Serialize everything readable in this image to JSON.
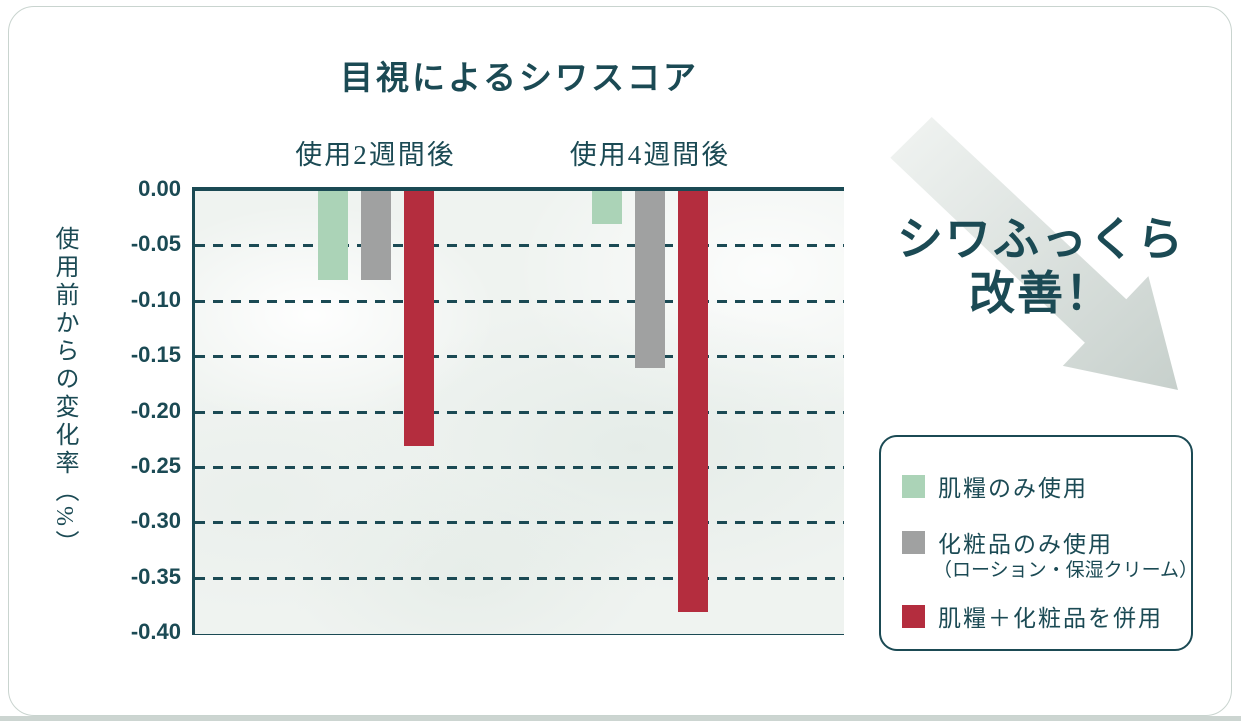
{
  "title": "目視によるシワスコア",
  "callout": {
    "line1": "シワふっくら",
    "line2": "改善！"
  },
  "colors": {
    "teal": "#1b4a54",
    "green": "#abd3b7",
    "gray": "#a0a1a1",
    "red": "#b42d3e",
    "arrow_light": "#f1f4f2",
    "arrow_dark": "#c7d0cc"
  },
  "chart_data": {
    "type": "bar",
    "title": "目視によるシワスコア",
    "ylabel": "使用前からの変化率（%）",
    "xlabel": "",
    "ylim": [
      -0.4,
      0.0
    ],
    "ytick_step": 0.05,
    "ytick_labels": [
      "0.00",
      "-0.05",
      "-0.10",
      "-0.15",
      "-0.20",
      "-0.25",
      "-0.30",
      "-0.35",
      "-0.40"
    ],
    "grid": "horizontal-dashed",
    "legend_position": "right-bottom",
    "categories": [
      "使用2週間後",
      "使用4週間後"
    ],
    "series": [
      {
        "name": "肌糧のみ使用",
        "color": "#abd3b7",
        "values": [
          -0.08,
          -0.03
        ]
      },
      {
        "name": "化粧品のみ使用（ローション・保湿クリーム）",
        "color": "#a0a1a1",
        "values": [
          -0.08,
          -0.16
        ]
      },
      {
        "name": "肌糧＋化粧品を併用",
        "color": "#b42d3e",
        "values": [
          -0.23,
          -0.38
        ]
      }
    ]
  },
  "legend": {
    "items": [
      {
        "label": "肌糧のみ使用",
        "sub": ""
      },
      {
        "label": "化粧品のみ使用",
        "sub": "（ローション・保湿クリーム）"
      },
      {
        "label": "肌糧＋化粧品を併用",
        "sub": ""
      }
    ]
  }
}
